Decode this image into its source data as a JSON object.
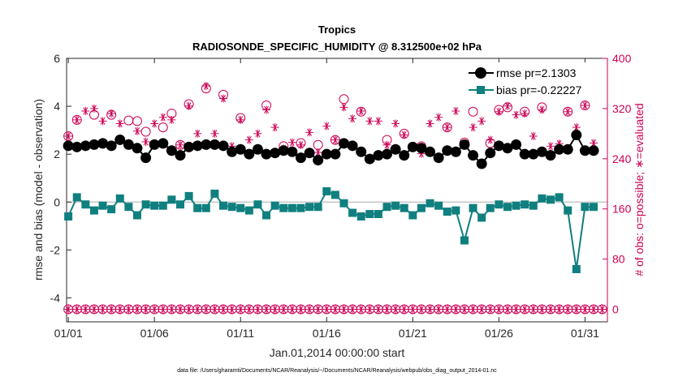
{
  "chart_data": {
    "type": "line",
    "title": "Tropics",
    "subtitle": "RADIOSONDE_SPECIFIC_HUMIDITY @ 8.312500e+02 hPa",
    "xlabel": "Jan.01,2014 00:00:00 start",
    "ylabel_left": "rmse and bias (model - observation)",
    "ylabel_right": "# of obs: o=possible; ∗=evaluated",
    "footer": "data file: /Users/gharamti/Documents/NCAR/Reanalysis/~/Documents/NCAR/Reanalysis/webpub/obs_diag_output_2014-01.nc",
    "x_ticks": [
      1,
      6,
      11,
      16,
      21,
      26,
      31
    ],
    "x_tick_labels": [
      "01/01",
      "01/06",
      "01/11",
      "01/16",
      "01/21",
      "01/26",
      "01/31"
    ],
    "xlim": [
      0.9,
      32.3
    ],
    "ylim_left": [
      -5,
      6
    ],
    "y_ticks_left": [
      -4,
      -2,
      0,
      2,
      4,
      6
    ],
    "y_tick_labels_left": [
      "-4",
      "-2",
      "0",
      "2",
      "4",
      "6"
    ],
    "ylim_right": [
      -20,
      400
    ],
    "y_ticks_right": [
      0,
      80,
      160,
      240,
      320,
      400
    ],
    "y_tick_labels_right": [
      "0",
      "80",
      "160",
      "240",
      "320",
      "400"
    ],
    "legend": [
      {
        "label": "rmse pr=2.1303",
        "series": "rmse"
      },
      {
        "label": "bias pr=-0.22227",
        "series": "bias"
      }
    ],
    "x": [
      1,
      1.5,
      2,
      2.5,
      3,
      3.5,
      4,
      4.5,
      5,
      5.5,
      6,
      6.5,
      7,
      7.5,
      8,
      8.5,
      9,
      9.5,
      10,
      10.5,
      11,
      11.5,
      12,
      12.5,
      13,
      13.5,
      14,
      14.5,
      15,
      15.5,
      16,
      16.5,
      17,
      17.5,
      18,
      18.5,
      19,
      19.5,
      20,
      20.5,
      21,
      21.5,
      22,
      22.5,
      23,
      23.5,
      24,
      24.5,
      25,
      25.5,
      26,
      26.5,
      27,
      27.5,
      28,
      28.5,
      29,
      29.5,
      30,
      30.5,
      31,
      31.5
    ],
    "series": [
      {
        "name": "rmse",
        "axis": "left",
        "color": "#000000",
        "marker": "circle",
        "values": [
          2.35,
          2.3,
          2.35,
          2.4,
          2.45,
          2.35,
          2.6,
          2.4,
          2.25,
          1.85,
          2.4,
          2.45,
          2.15,
          1.95,
          2.3,
          2.35,
          2.4,
          2.4,
          2.35,
          2.1,
          2.2,
          2.0,
          2.2,
          2.0,
          2.05,
          2.15,
          2.1,
          1.85,
          2.05,
          1.75,
          2.0,
          2.0,
          2.45,
          2.35,
          2.1,
          1.8,
          1.95,
          2.0,
          2.2,
          1.95,
          2.3,
          2.25,
          2.1,
          1.85,
          2.15,
          2.1,
          2.4,
          1.95,
          1.6,
          2.05,
          2.35,
          2.25,
          2.4,
          2.0,
          2.0,
          2.1,
          1.95,
          2.2,
          2.2,
          2.8,
          2.15,
          2.15
        ]
      },
      {
        "name": "bias",
        "axis": "left",
        "color": "#107f7f",
        "marker": "square",
        "values": [
          -0.6,
          0.2,
          -0.1,
          -0.35,
          -0.15,
          -0.3,
          0.15,
          -0.2,
          -0.55,
          -0.1,
          -0.15,
          -0.15,
          0.1,
          -0.1,
          0.25,
          -0.25,
          -0.25,
          0.35,
          -0.15,
          -0.2,
          -0.25,
          -0.35,
          -0.1,
          -0.55,
          -0.15,
          -0.25,
          -0.25,
          -0.25,
          -0.2,
          -0.2,
          0.45,
          0.3,
          -0.05,
          -0.45,
          -0.6,
          -0.5,
          -0.5,
          -0.2,
          -0.15,
          -0.25,
          -0.55,
          -0.25,
          -0.05,
          -0.15,
          -0.4,
          -0.35,
          -1.6,
          -0.25,
          -0.65,
          -0.25,
          -0.1,
          -0.2,
          -0.15,
          -0.1,
          -0.15,
          0.15,
          0.1,
          0.2,
          -0.35,
          -2.8,
          -0.2,
          -0.2
        ]
      },
      {
        "name": "possible",
        "axis": "right",
        "color": "#cc0055",
        "marker": "open-circle",
        "values": [
          276,
          302,
          0,
          310,
          0,
          310,
          0,
          301,
          300,
          283,
          0,
          290,
          312,
          262,
          327,
          0,
          352,
          0,
          342,
          0,
          305,
          0,
          0,
          325,
          0,
          260,
          0,
          265,
          0,
          262,
          0,
          270,
          335,
          0,
          315,
          0,
          0,
          270,
          0,
          280,
          0,
          260,
          0,
          0,
          290,
          0,
          266,
          315,
          0,
          265,
          318,
          322,
          0,
          315,
          0,
          322,
          0,
          0,
          315,
          0,
          325,
          0
        ]
      },
      {
        "name": "evaluated",
        "axis": "right",
        "color": "#cc0055",
        "marker": "asterisk",
        "values": [
          276,
          302,
          316,
          320,
          300,
          312,
          296,
          265,
          284,
          267,
          296,
          306,
          302,
          262,
          324,
          280,
          356,
          280,
          336,
          260,
          302,
          270,
          280,
          318,
          290,
          256,
          266,
          262,
          282,
          250,
          292,
          270,
          322,
          304,
          316,
          300,
          300,
          262,
          296,
          278,
          0,
          248,
          296,
          306,
          290,
          316,
          264,
          290,
          300,
          270,
          315,
          324,
          310,
          312,
          276,
          318,
          260,
          264,
          315,
          290,
          325,
          265
        ]
      }
    ],
    "right_axis_floor": {
      "x": [
        1,
        1.5,
        2,
        2.5,
        3,
        3.5,
        4,
        4.5,
        5,
        5.5,
        6,
        6.5,
        7,
        7.5,
        8,
        8.5,
        9,
        9.5,
        10,
        10.5,
        11,
        11.5,
        12,
        12.5,
        13,
        13.5,
        14,
        14.5,
        15,
        15.5,
        16,
        16.5,
        17,
        17.5,
        18,
        18.5,
        19,
        19.5,
        20,
        20.5,
        21,
        21.5,
        22,
        22.5,
        23,
        23.5,
        24,
        24.5,
        25,
        25.5,
        26,
        26.5,
        27,
        27.5,
        28,
        28.5,
        29,
        29.5,
        30,
        30.5,
        31,
        31.5,
        32
      ],
      "possible": 0,
      "evaluated": 0
    },
    "colors": {
      "axis": "#262626",
      "right_axis": "#cc0055",
      "rmse": "#000000",
      "bias": "#107f7f",
      "obs": "#cc0055",
      "zero_line": "#bdbdbd",
      "grid": "#e6e6e6"
    }
  }
}
